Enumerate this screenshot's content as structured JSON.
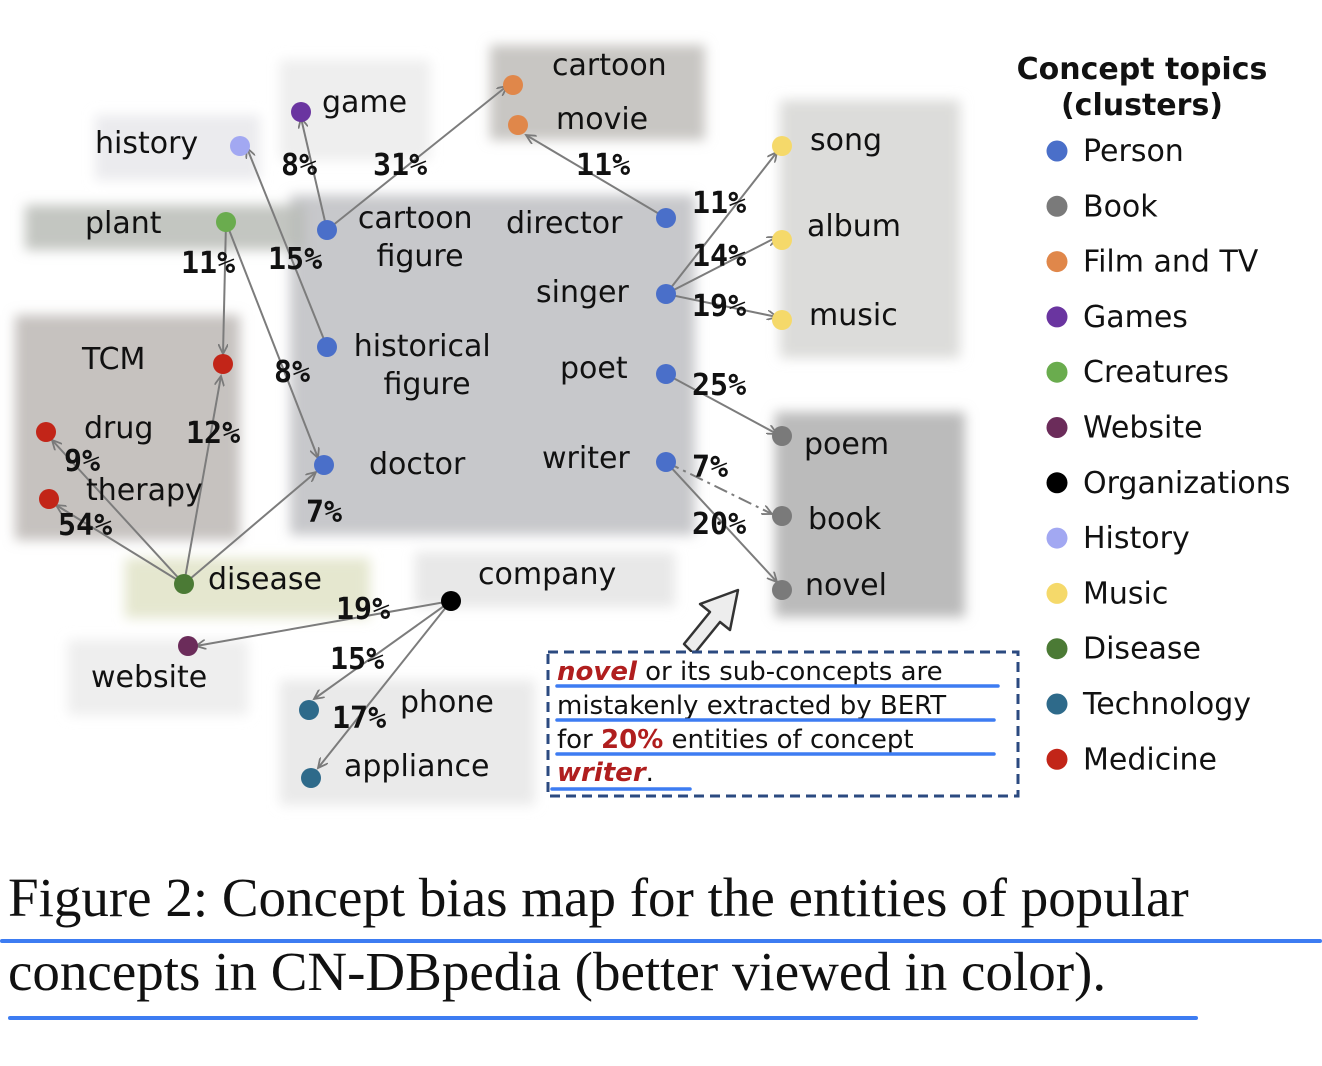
{
  "figure": {
    "legend": {
      "title_line1": "Concept topics",
      "title_line2": "(clusters)",
      "items": [
        {
          "label": "Person",
          "color": "#4a6fc9"
        },
        {
          "label": "Book",
          "color": "#7a7a7a"
        },
        {
          "label": "Film and TV",
          "color": "#e0874a"
        },
        {
          "label": "Games",
          "color": "#6a35a0"
        },
        {
          "label": "Creatures",
          "color": "#6aac4e"
        },
        {
          "label": "Website",
          "color": "#6b2c5a"
        },
        {
          "label": "Organizations",
          "color": "#000000"
        },
        {
          "label": "History",
          "color": "#a2a8f2"
        },
        {
          "label": "Music",
          "color": "#f5d96a"
        },
        {
          "label": "Disease",
          "color": "#4b7a35"
        },
        {
          "label": "Technology",
          "color": "#2e6a8a"
        },
        {
          "label": "Medicine",
          "color": "#c22518"
        }
      ]
    },
    "nodes": [
      {
        "id": "history",
        "label": "history",
        "topic": "History"
      },
      {
        "id": "game",
        "label": "game",
        "topic": "Games"
      },
      {
        "id": "cartoon",
        "label": "cartoon",
        "topic": "Film and TV"
      },
      {
        "id": "movie",
        "label": "movie",
        "topic": "Film and TV"
      },
      {
        "id": "plant",
        "label": "plant",
        "topic": "Creatures"
      },
      {
        "id": "cartoon_figure",
        "label": "cartoon figure",
        "topic": "Person"
      },
      {
        "id": "director",
        "label": "director",
        "topic": "Person"
      },
      {
        "id": "singer",
        "label": "singer",
        "topic": "Person"
      },
      {
        "id": "song",
        "label": "song",
        "topic": "Music"
      },
      {
        "id": "album",
        "label": "album",
        "topic": "Music"
      },
      {
        "id": "music",
        "label": "music",
        "topic": "Music"
      },
      {
        "id": "tcm",
        "label": "TCM",
        "topic": "Medicine"
      },
      {
        "id": "historical_figure",
        "label": "historical figure",
        "topic": "Person"
      },
      {
        "id": "poet",
        "label": "poet",
        "topic": "Person"
      },
      {
        "id": "drug",
        "label": "drug",
        "topic": "Medicine"
      },
      {
        "id": "therapy",
        "label": "therapy",
        "topic": "Medicine"
      },
      {
        "id": "doctor",
        "label": "doctor",
        "topic": "Person"
      },
      {
        "id": "writer",
        "label": "writer",
        "topic": "Person"
      },
      {
        "id": "poem",
        "label": "poem",
        "topic": "Book"
      },
      {
        "id": "book",
        "label": "book",
        "topic": "Book"
      },
      {
        "id": "novel",
        "label": "novel",
        "topic": "Book"
      },
      {
        "id": "disease",
        "label": "disease",
        "topic": "Disease"
      },
      {
        "id": "company",
        "label": "company",
        "topic": "Organizations"
      },
      {
        "id": "website",
        "label": "website",
        "topic": "Website"
      },
      {
        "id": "phone",
        "label": "phone",
        "topic": "Technology"
      },
      {
        "id": "appliance",
        "label": "appliance",
        "topic": "Technology"
      }
    ],
    "edges": [
      {
        "from": "game",
        "to": "cartoon_figure",
        "pct": "8%"
      },
      {
        "from": "cartoon_figure",
        "to": "cartoon",
        "pct": "31%"
      },
      {
        "from": "director",
        "to": "movie",
        "pct": "11%"
      },
      {
        "from": "singer",
        "to": "song",
        "pct": "11%"
      },
      {
        "from": "singer",
        "to": "album",
        "pct": "14%"
      },
      {
        "from": "singer",
        "to": "music",
        "pct": "19%"
      },
      {
        "from": "plant",
        "to": "tcm",
        "pct": "11%"
      },
      {
        "from": "historical_figure",
        "to": "history",
        "pct": "15%"
      },
      {
        "from": "plant",
        "to": "doctor",
        "pct": "8%"
      },
      {
        "from": "poet",
        "to": "poem",
        "pct": "25%"
      },
      {
        "from": "disease",
        "to": "tcm",
        "pct": "12%"
      },
      {
        "from": "disease",
        "to": "drug",
        "pct": "9%"
      },
      {
        "from": "disease",
        "to": "therapy",
        "pct": "54%"
      },
      {
        "from": "disease",
        "to": "doctor",
        "pct": "7%"
      },
      {
        "from": "writer",
        "to": "book",
        "pct": "7%"
      },
      {
        "from": "writer",
        "to": "novel",
        "pct": "20%"
      },
      {
        "from": "company",
        "to": "website",
        "pct": "19%"
      },
      {
        "from": "company",
        "to": "phone",
        "pct": "15%"
      },
      {
        "from": "company",
        "to": "appliance",
        "pct": "17%"
      }
    ],
    "annotation": {
      "l1_em": "novel",
      "l1_rest": " or its sub-concepts are",
      "l2": "mistakenly extracted by BERT",
      "l3_pre": "for ",
      "l3_em": "20%",
      "l3_post": " entities of concept",
      "l4_em": "writer",
      "l4_post": "."
    }
  },
  "caption": {
    "line1": "Figure 2: Concept bias map for the entities of popular",
    "line2": "concepts in CN-DBpedia (better viewed in color)."
  }
}
